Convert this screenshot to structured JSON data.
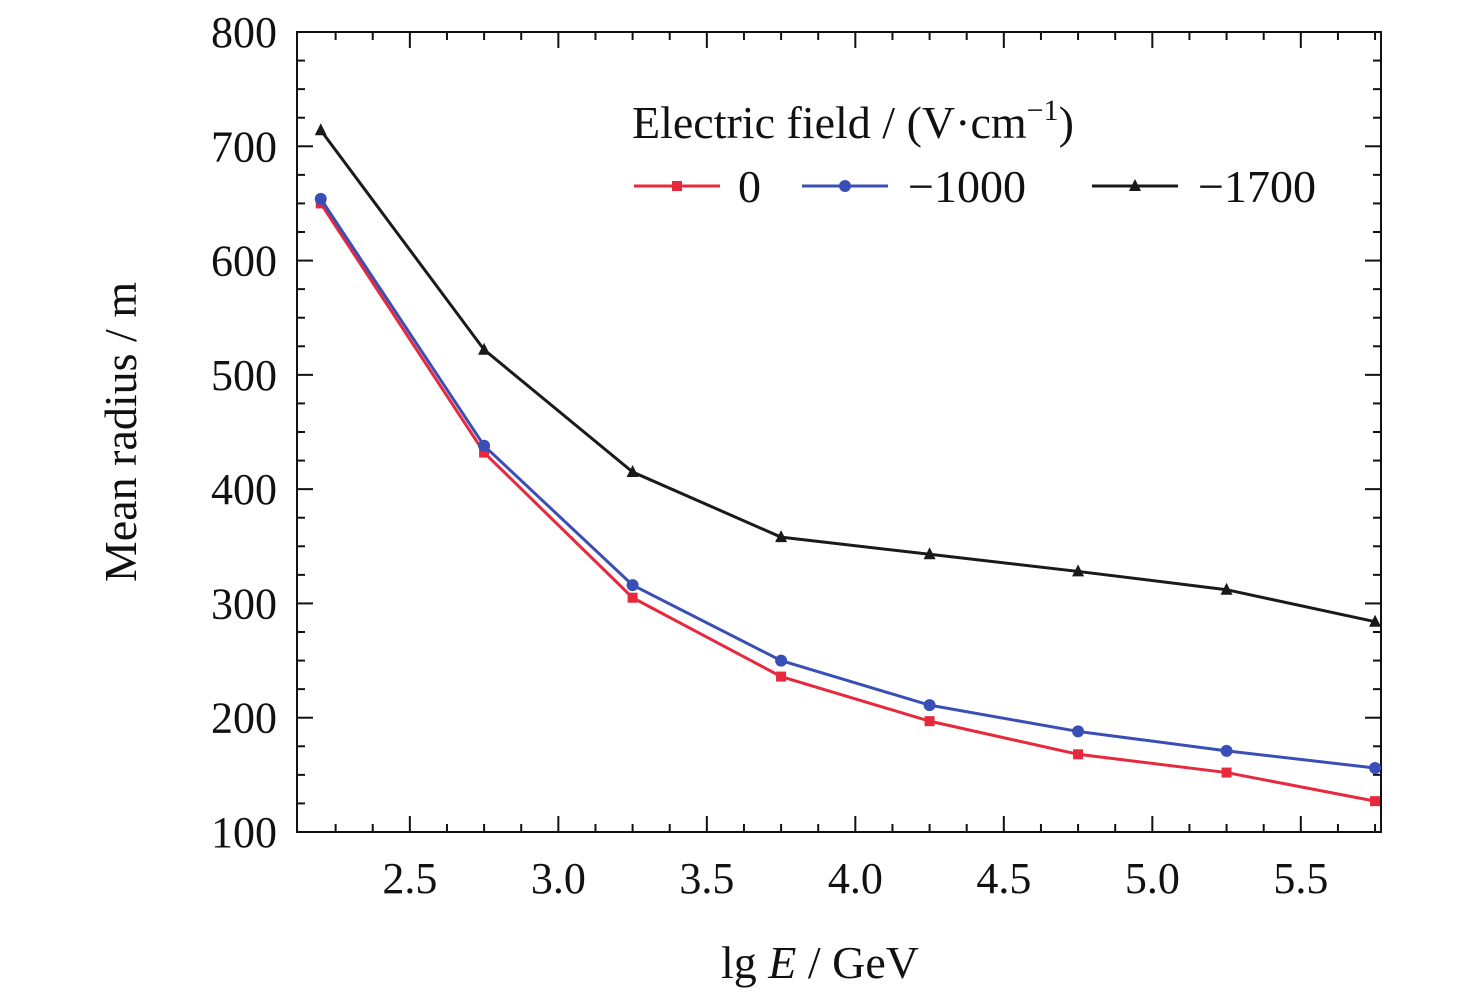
{
  "chart_data": {
    "type": "line",
    "x": [
      2.2,
      2.75,
      3.25,
      3.75,
      4.25,
      4.75,
      5.25,
      5.75
    ],
    "series": [
      {
        "name": "0",
        "color": "#e8283c",
        "marker": "square",
        "values": [
          650,
          432,
          305,
          236,
          197,
          168,
          152,
          127
        ]
      },
      {
        "name": "−1000",
        "color": "#3a4fb5",
        "marker": "circle",
        "values": [
          654,
          438,
          316,
          250,
          211,
          188,
          171,
          156
        ]
      },
      {
        "name": "−1700",
        "color": "#1a1a1a",
        "marker": "triangle",
        "values": [
          714,
          522,
          415,
          358,
          343,
          328,
          312,
          284
        ]
      }
    ],
    "xlabel": {
      "prefix": "lg ",
      "var": "E",
      "suffix": " / GeV"
    },
    "ylabel": "Mean radius / m",
    "xticks": [
      "2.5",
      "3.0",
      "3.5",
      "4.0",
      "4.5",
      "5.0",
      "5.5"
    ],
    "xtick_values": [
      2.5,
      3.0,
      3.5,
      4.0,
      4.5,
      5.0,
      5.5
    ],
    "yticks": [
      "100",
      "200",
      "300",
      "400",
      "500",
      "600",
      "700",
      "800"
    ],
    "ytick_values": [
      100,
      200,
      300,
      400,
      500,
      600,
      700,
      800
    ],
    "ylim": [
      100,
      800
    ],
    "legend": {
      "title": "Electric field / (V·cm",
      "title_sup": "−1",
      "title_close": ")",
      "placement": "top-right"
    },
    "grid": false
  }
}
